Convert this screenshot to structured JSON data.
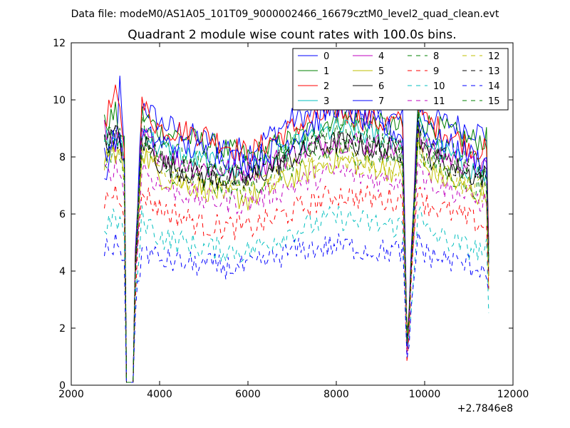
{
  "suptitle": "Data file: modeM0/AS1A05_101T09_9000002466_16679cztM0_level2_quad_clean.evt",
  "chart_data": {
    "type": "line",
    "title": "Quadrant 2 module wise count rates with 100.0s bins.",
    "xlabel": "",
    "ylabel": "",
    "x_offset_label": "+2.7846e8",
    "xlim": [
      2000,
      12000
    ],
    "ylim": [
      0,
      12
    ],
    "x_ticks": [
      "2000",
      "4000",
      "6000",
      "8000",
      "10000",
      "12000"
    ],
    "y_ticks": [
      "0",
      "2",
      "4",
      "6",
      "8",
      "10",
      "12"
    ],
    "grid": false,
    "legend_position": "top-right",
    "legend_columns": 4,
    "x": [
      2750,
      3000,
      3100,
      3200,
      3250,
      3400,
      3450,
      3600,
      4000,
      5000,
      6000,
      7000,
      8000,
      9000,
      9500,
      9620,
      9660,
      9850,
      10000,
      11000,
      11400,
      11450
    ],
    "series": [
      {
        "name": "0",
        "color": "#0000ff",
        "dash": "solid",
        "base": [
          7.1,
          8.5,
          10.5,
          8.0,
          0.1,
          0.1,
          4.5,
          9.9,
          9.2,
          8.6,
          8.2,
          9.3,
          9.8,
          9.4,
          9.3,
          0.4,
          3.5,
          9.9,
          9.4,
          9.0,
          8.8,
          5.0
        ]
      },
      {
        "name": "1",
        "color": "#008000",
        "dash": "solid",
        "base": [
          9.1,
          9.5,
          9.0,
          8.3,
          0.1,
          0.1,
          4.0,
          9.5,
          8.9,
          8.5,
          8.0,
          8.6,
          9.4,
          9.1,
          9.0,
          0.3,
          3.2,
          9.6,
          9.2,
          8.6,
          8.6,
          4.8
        ]
      },
      {
        "name": "2",
        "color": "#ff0000",
        "dash": "solid",
        "base": [
          9.3,
          10.1,
          9.5,
          8.5,
          0.1,
          0.1,
          4.3,
          9.8,
          9.0,
          8.8,
          8.1,
          9.0,
          9.6,
          9.2,
          9.2,
          0.4,
          3.4,
          9.8,
          9.3,
          8.4,
          8.2,
          4.6
        ]
      },
      {
        "name": "3",
        "color": "#00bfbf",
        "dash": "solid",
        "base": [
          8.6,
          8.7,
          8.4,
          7.9,
          0.1,
          0.1,
          4.0,
          9.0,
          8.3,
          7.8,
          7.4,
          8.3,
          9.0,
          8.7,
          8.6,
          0.3,
          3.0,
          9.2,
          8.6,
          7.6,
          7.3,
          4.2
        ]
      },
      {
        "name": "4",
        "color": "#bf00bf",
        "dash": "solid",
        "base": [
          8.9,
          8.6,
          8.3,
          7.8,
          0.1,
          0.1,
          3.9,
          8.8,
          8.1,
          7.6,
          7.5,
          8.1,
          8.6,
          8.4,
          8.3,
          0.3,
          3.0,
          9.0,
          8.3,
          7.7,
          7.5,
          4.1
        ]
      },
      {
        "name": "5",
        "color": "#bfbf00",
        "dash": "solid",
        "base": [
          8.0,
          8.2,
          8.0,
          7.5,
          0.1,
          0.1,
          3.7,
          8.3,
          7.3,
          6.9,
          6.5,
          7.3,
          7.9,
          7.6,
          7.5,
          0.3,
          2.8,
          8.6,
          7.6,
          6.8,
          6.6,
          3.8
        ]
      },
      {
        "name": "6",
        "color": "#000000",
        "dash": "solid",
        "base": [
          8.4,
          8.8,
          8.6,
          7.9,
          0.1,
          0.1,
          4.0,
          8.6,
          7.8,
          7.3,
          7.2,
          8.0,
          8.5,
          8.3,
          8.2,
          0.3,
          3.0,
          9.0,
          8.1,
          7.4,
          7.3,
          4.0
        ]
      },
      {
        "name": "7",
        "color": "#0000ff",
        "dash": "solid",
        "base": [
          8.2,
          8.7,
          8.4,
          7.9,
          0.1,
          0.1,
          4.0,
          8.8,
          8.5,
          8.2,
          7.8,
          8.6,
          9.8,
          9.0,
          8.8,
          0.3,
          3.2,
          9.4,
          8.8,
          8.1,
          7.8,
          4.4
        ]
      },
      {
        "name": "8",
        "color": "#008000",
        "dash": "dashed",
        "base": [
          7.8,
          8.3,
          8.0,
          7.5,
          0.1,
          0.1,
          3.8,
          8.4,
          7.7,
          7.0,
          6.9,
          7.7,
          8.2,
          8.0,
          7.9,
          0.3,
          2.9,
          8.7,
          7.9,
          7.0,
          6.9,
          3.9
        ]
      },
      {
        "name": "9",
        "color": "#ff0000",
        "dash": "dashed",
        "base": [
          6.5,
          6.8,
          6.7,
          6.2,
          0.1,
          0.1,
          3.2,
          6.8,
          6.2,
          5.6,
          5.5,
          6.1,
          6.7,
          6.5,
          6.5,
          0.2,
          2.4,
          7.3,
          6.4,
          5.8,
          5.6,
          3.2
        ]
      },
      {
        "name": "10",
        "color": "#00bfbf",
        "dash": "dashed",
        "base": [
          5.6,
          5.8,
          5.7,
          5.3,
          0.1,
          0.1,
          2.8,
          5.9,
          5.2,
          4.8,
          4.7,
          5.4,
          5.9,
          5.6,
          5.6,
          0.2,
          2.1,
          6.2,
          5.4,
          4.8,
          4.7,
          2.3
        ]
      },
      {
        "name": "11",
        "color": "#bf00bf",
        "dash": "dashed",
        "base": [
          7.4,
          7.7,
          7.4,
          6.9,
          0.1,
          0.1,
          3.5,
          7.7,
          7.0,
          6.5,
          6.4,
          7.0,
          7.5,
          7.2,
          7.2,
          0.3,
          2.7,
          8.2,
          7.2,
          6.6,
          6.4,
          3.6
        ]
      },
      {
        "name": "12",
        "color": "#bfbf00",
        "dash": "dashed",
        "base": [
          7.9,
          8.2,
          7.9,
          7.4,
          0.1,
          0.1,
          3.7,
          8.2,
          7.5,
          7.0,
          6.9,
          7.5,
          8.0,
          7.7,
          7.6,
          0.3,
          2.8,
          8.6,
          7.7,
          7.0,
          6.8,
          3.8
        ]
      },
      {
        "name": "13",
        "color": "#000000",
        "dash": "dashed",
        "base": [
          8.4,
          8.7,
          8.5,
          7.9,
          0.1,
          0.1,
          4.0,
          8.7,
          7.9,
          7.4,
          7.3,
          8.1,
          8.6,
          8.3,
          8.2,
          0.3,
          3.1,
          9.1,
          8.2,
          7.5,
          7.3,
          4.0
        ]
      },
      {
        "name": "14",
        "color": "#0000ff",
        "dash": "dashed",
        "base": [
          4.8,
          4.9,
          4.9,
          4.5,
          0.1,
          0.1,
          2.4,
          4.8,
          4.4,
          4.2,
          4.1,
          4.7,
          4.9,
          4.7,
          4.7,
          0.2,
          1.8,
          5.3,
          4.6,
          4.2,
          4.1,
          3.0
        ]
      },
      {
        "name": "15",
        "color": "#008000",
        "dash": "dashed",
        "base": [
          8.5,
          8.8,
          8.6,
          8.0,
          0.1,
          0.1,
          4.0,
          9.0,
          8.2,
          7.8,
          7.6,
          8.3,
          8.9,
          8.6,
          8.5,
          0.3,
          3.1,
          9.3,
          8.5,
          7.8,
          7.6,
          4.2
        ]
      }
    ]
  }
}
